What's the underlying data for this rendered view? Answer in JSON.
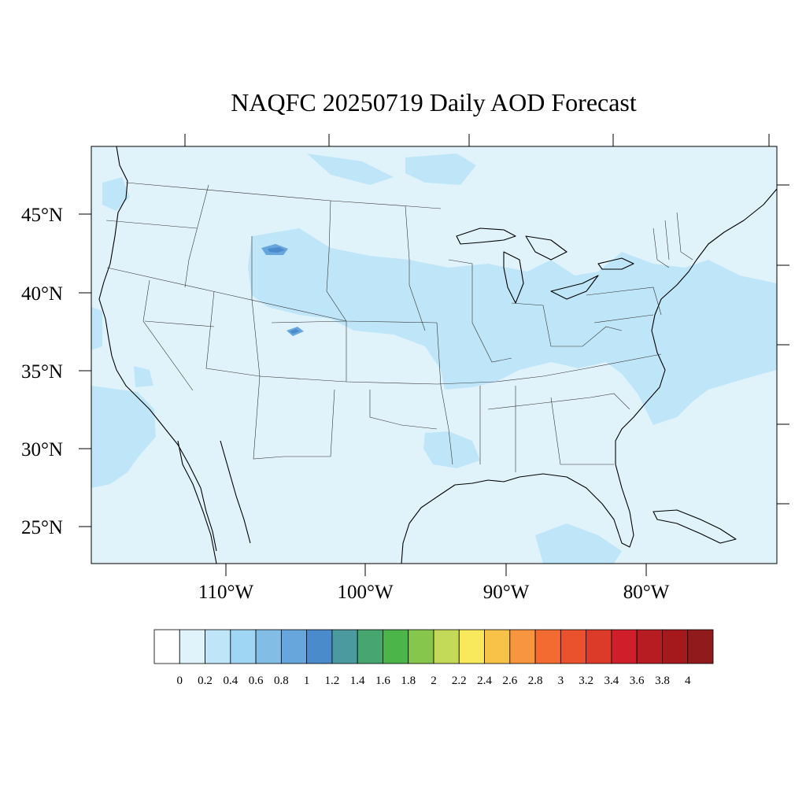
{
  "title": "NAQFC 20250719 Daily AOD Forecast",
  "latitude_labels": [
    "45°N",
    "40°N",
    "35°N",
    "30°N",
    "25°N"
  ],
  "longitude_labels": [
    "110°W",
    "100°W",
    "90°W",
    "80°W"
  ],
  "colorbar": {
    "tick_labels": [
      "0",
      "0.2",
      "0.4",
      "0.6",
      "0.8",
      "1",
      "1.2",
      "1.4",
      "1.6",
      "1.8",
      "2",
      "2.2",
      "2.4",
      "2.6",
      "2.8",
      "3",
      "3.2",
      "3.4",
      "3.6",
      "3.8",
      "4"
    ],
    "colors": [
      "#ffffff",
      "#e0f3fb",
      "#bfe6f8",
      "#9fd6f4",
      "#82bde6",
      "#67a6dc",
      "#4a8ccb",
      "#4a9aa0",
      "#47a56f",
      "#4bb549",
      "#86c64d",
      "#c3d958",
      "#f7e85c",
      "#f8c148",
      "#f7963e",
      "#f46b31",
      "#e9522d",
      "#dd3b29",
      "#d01f2a",
      "#b81c23",
      "#a5191d",
      "#911a1c"
    ]
  },
  "map": {
    "background_color": "#e0f3fb",
    "enhanced_color": "#bfe6f8",
    "high_color": "#67a6dc",
    "peak_color": "#4a8ccb"
  }
}
